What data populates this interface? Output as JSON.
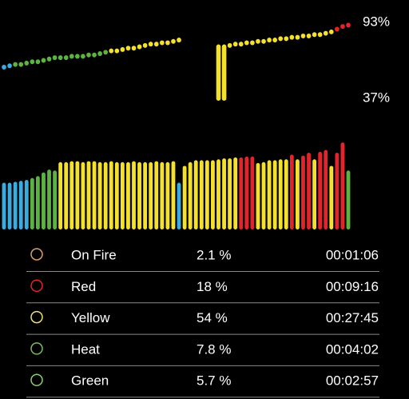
{
  "chart_data": [
    {
      "type": "capsule-line",
      "yticks": [
        {
          "value": 93,
          "label": "93%"
        },
        {
          "value": 37,
          "label": "37%"
        }
      ],
      "ylim": [
        37,
        93
      ],
      "values": [
        60,
        61,
        62,
        62,
        63,
        64,
        64,
        65,
        66,
        67,
        67,
        67,
        68,
        68,
        68,
        69,
        69,
        70,
        71,
        72,
        72,
        73,
        74,
        74,
        75,
        76,
        77,
        77,
        78,
        78,
        79,
        80,
        null,
        null,
        null,
        null,
        null,
        null,
        37,
        75,
        76,
        77,
        77,
        78,
        78,
        79,
        79,
        80,
        80,
        81,
        81,
        82,
        82,
        83,
        83,
        84,
        84,
        85,
        86,
        88,
        90,
        91
      ],
      "colors": [
        "#3aace0",
        "#3aace0",
        "#5db341",
        "#5db341",
        "#5db341",
        "#5db341",
        "#5db341",
        "#5db341",
        "#5db341",
        "#5db341",
        "#5db341",
        "#5db341",
        "#5db341",
        "#5db341",
        "#5db341",
        "#5db341",
        "#5db341",
        "#5db341",
        "#5db341",
        "#f5e12a",
        "#f5e12a",
        "#f5e12a",
        "#f5e12a",
        "#f5e12a",
        "#f5e12a",
        "#f5e12a",
        "#f5e12a",
        "#f5e12a",
        "#f5e12a",
        "#f5e12a",
        "#f5e12a",
        "#f5e12a",
        null,
        null,
        null,
        null,
        null,
        null,
        "#f5e12a",
        "#f5e12a",
        "#f5e12a",
        "#f5e12a",
        "#f5e12a",
        "#f5e12a",
        "#f5e12a",
        "#f5e12a",
        "#f5e12a",
        "#f5e12a",
        "#f5e12a",
        "#f5e12a",
        "#f5e12a",
        "#f5e12a",
        "#f5e12a",
        "#f5e12a",
        "#f5e12a",
        "#f5e12a",
        "#f5e12a",
        "#f5e12a",
        "#f5e12a",
        "#e3242b",
        "#e3242b",
        "#e3242b"
      ]
    },
    {
      "type": "bar",
      "ylim": [
        0,
        100
      ],
      "values": [
        50,
        50,
        51,
        52,
        53,
        55,
        57,
        61,
        64,
        63,
        72,
        72,
        73,
        73,
        72,
        73,
        73,
        72,
        72,
        73,
        72,
        72,
        72,
        73,
        72,
        72,
        72,
        73,
        72,
        72,
        73,
        50,
        68,
        72,
        74,
        74,
        74,
        74,
        75,
        76,
        76,
        77,
        77,
        78,
        78,
        71,
        72,
        74,
        74,
        75,
        75,
        80,
        75,
        79,
        82,
        75,
        83,
        85,
        68,
        82,
        93,
        63
      ],
      "colors": [
        "#3aace0",
        "#3aace0",
        "#3aace0",
        "#3aace0",
        "#3aace0",
        "#5db341",
        "#5db341",
        "#5db341",
        "#5db341",
        "#5db341",
        "#f5e12a",
        "#f5e12a",
        "#f5e12a",
        "#f5e12a",
        "#f5e12a",
        "#f5e12a",
        "#f5e12a",
        "#f5e12a",
        "#f5e12a",
        "#f5e12a",
        "#f5e12a",
        "#f5e12a",
        "#f5e12a",
        "#f5e12a",
        "#f5e12a",
        "#f5e12a",
        "#f5e12a",
        "#f5e12a",
        "#f5e12a",
        "#f5e12a",
        "#f5e12a",
        "#3aace0",
        "#f5e12a",
        "#f5e12a",
        "#f5e12a",
        "#f5e12a",
        "#f5e12a",
        "#f5e12a",
        "#f5e12a",
        "#f5e12a",
        "#f5e12a",
        "#f5e12a",
        "#e3242b",
        "#e3242b",
        "#e3242b",
        "#f5e12a",
        "#f5e12a",
        "#f5e12a",
        "#f5e12a",
        "#f5e12a",
        "#f5e12a",
        "#e3242b",
        "#f5e12a",
        "#e3242b",
        "#e3242b",
        "#f5e12a",
        "#e3242b",
        "#e3242b",
        "#f5e12a",
        "#e3242b",
        "#e3242b",
        "#5db341"
      ]
    }
  ],
  "zones": {
    "rows": [
      {
        "name": "On Fire",
        "percent": "2.1 %",
        "time": "00:01:06",
        "color": "#d9a066"
      },
      {
        "name": "Red",
        "percent": "18 %",
        "time": "00:09:16",
        "color": "#e3242b"
      },
      {
        "name": "Yellow",
        "percent": "54 %",
        "time": "00:27:45",
        "color": "#efe070"
      },
      {
        "name": "Heat",
        "percent": "7.8 %",
        "time": "00:04:02",
        "color": "#7fb85f"
      },
      {
        "name": "Green",
        "percent": "5.7 %",
        "time": "00:02:57",
        "color": "#8fcf6f"
      }
    ]
  }
}
